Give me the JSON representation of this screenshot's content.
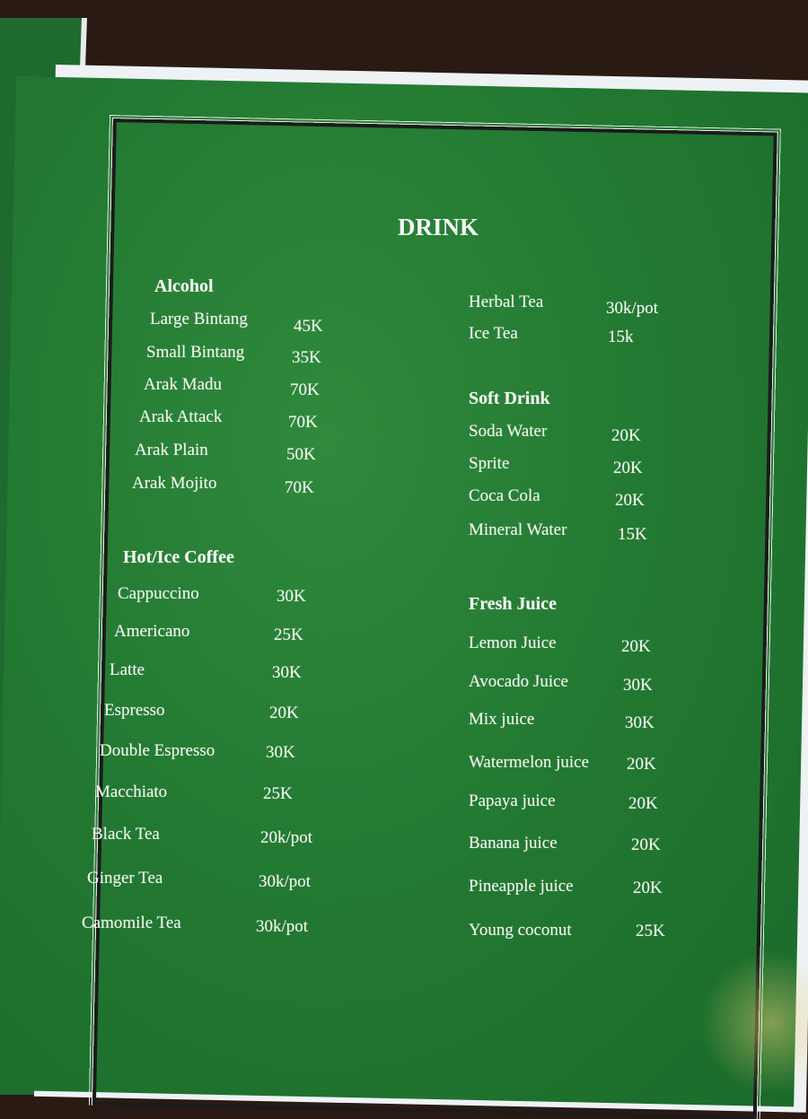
{
  "title": "DRINK",
  "left": {
    "alcohol": {
      "heading": "Alcohol",
      "items": [
        {
          "name": "Large Bintang",
          "price": "45K"
        },
        {
          "name": "Small Bintang",
          "price": "35K"
        },
        {
          "name": "Arak Madu",
          "price": "70K"
        },
        {
          "name": "Arak Attack",
          "price": "70K"
        },
        {
          "name": "Arak Plain",
          "price": "50K"
        },
        {
          "name": "Arak Mojito",
          "price": "70K"
        }
      ]
    },
    "coffee": {
      "heading": "Hot/Ice Coffee",
      "items": [
        {
          "name": "Cappuccino",
          "price": "30K"
        },
        {
          "name": "Americano",
          "price": "25K"
        },
        {
          "name": "Latte",
          "price": "30K"
        },
        {
          "name": "Espresso",
          "price": "20K"
        },
        {
          "name": "Double Espresso",
          "price": "30K"
        },
        {
          "name": "Macchiato",
          "price": "25K"
        },
        {
          "name": "Black Tea",
          "price": "20k/pot"
        },
        {
          "name": "Ginger Tea",
          "price": "30k/pot"
        },
        {
          "name": "Camomile Tea",
          "price": "30k/pot"
        }
      ]
    }
  },
  "right": {
    "tea": {
      "items": [
        {
          "name": "Herbal Tea",
          "price": "30k/pot"
        },
        {
          "name": "Ice Tea",
          "price": "15k"
        }
      ]
    },
    "soft": {
      "heading": "Soft Drink",
      "items": [
        {
          "name": "Soda Water",
          "price": "20K"
        },
        {
          "name": "Sprite",
          "price": "20K"
        },
        {
          "name": "Coca Cola",
          "price": "20K"
        },
        {
          "name": "Mineral Water",
          "price": "15K"
        }
      ]
    },
    "juice": {
      "heading": "Fresh Juice",
      "items": [
        {
          "name": "Lemon Juice",
          "price": "20K"
        },
        {
          "name": "Avocado Juice",
          "price": "30K"
        },
        {
          "name": "Mix juice",
          "price": "30K"
        },
        {
          "name": "Watermelon juice",
          "price": "20K"
        },
        {
          "name": "Papaya juice",
          "price": "20K"
        },
        {
          "name": "Banana juice",
          "price": "20K"
        },
        {
          "name": "Pineapple juice",
          "price": "20K"
        },
        {
          "name": "Young coconut",
          "price": "25K"
        }
      ]
    }
  },
  "colors": {
    "board": "#237a32",
    "text": "#f3f6f1",
    "paper": "#eef2f4"
  }
}
